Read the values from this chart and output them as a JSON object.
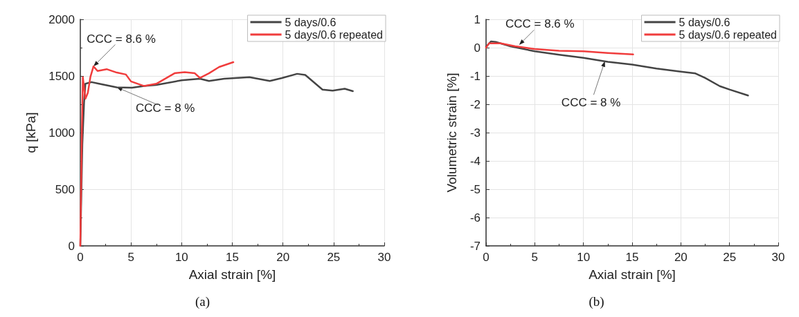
{
  "chart_data": [
    {
      "type": "line",
      "title": "(a)",
      "xlabel": "Axial strain [%]",
      "ylabel": "q [kPa]",
      "xlim": [
        0,
        30
      ],
      "xticks": [
        0,
        5,
        10,
        15,
        20,
        25,
        30
      ],
      "ylim": [
        0,
        2000
      ],
      "yticks": [
        0,
        500,
        1000,
        1500,
        2000
      ],
      "grid": true,
      "legend": "top right",
      "marker": "none",
      "line_style": "solid",
      "series": [
        {
          "name": "5 days/0.6",
          "color": "#444444",
          "x": [
            0,
            0.2,
            0.37,
            0.5,
            1.1,
            1.86,
            3.6,
            5.1,
            6.3,
            7.5,
            10,
            11.8,
            12.7,
            14.2,
            16.7,
            18.7,
            19.9,
            21.4,
            22.2,
            23.9,
            24.9,
            26.1,
            26.9
          ],
          "values": [
            0,
            900,
            1268,
            1431,
            1446,
            1431,
            1400,
            1397,
            1411,
            1421,
            1462,
            1476,
            1456,
            1476,
            1489,
            1456,
            1482,
            1519,
            1509,
            1380,
            1370,
            1387,
            1366
          ]
        },
        {
          "name": "5 days/0.6 repeated",
          "color": "#f03c3c",
          "x": [
            0,
            0.15,
            0.25,
            0.5,
            0.74,
            1.0,
            1.3,
            1.7,
            2.6,
            3.6,
            4.5,
            5.0,
            6.3,
            7.5,
            9.3,
            10.3,
            11.3,
            11.8,
            12.7,
            13.7,
            15.1
          ],
          "values": [
            0,
            1000,
            1489,
            1299,
            1350,
            1493,
            1585,
            1544,
            1560,
            1530,
            1513,
            1452,
            1411,
            1431,
            1524,
            1534,
            1524,
            1483,
            1524,
            1579,
            1622
          ]
        }
      ],
      "annotations": [
        {
          "text": "CCC = 8.6 %",
          "x": 1.3,
          "y": 1585
        },
        {
          "text": "CCC = 8 %",
          "x": 3.6,
          "y": 1400
        }
      ]
    },
    {
      "type": "line",
      "title": "(b)",
      "xlabel": "Axial strain [%]",
      "ylabel": "Volumetric strain [%]",
      "xlim": [
        0,
        30
      ],
      "xticks": [
        0,
        5,
        10,
        15,
        20,
        25,
        30
      ],
      "ylim": [
        -7,
        1
      ],
      "yticks": [
        -7,
        -6,
        -5,
        -4,
        -3,
        -2,
        -1,
        0,
        1
      ],
      "grid": true,
      "legend": "top right",
      "marker": "none",
      "line_style": "solid",
      "series": [
        {
          "name": "5 days/0.6",
          "color": "#444444",
          "x": [
            0,
            0.5,
            1.0,
            2.5,
            5,
            7.5,
            10,
            12.5,
            15,
            17.5,
            20,
            21.5,
            22.5,
            24,
            25,
            26.9
          ],
          "values": [
            0.03,
            0.22,
            0.2,
            0.05,
            -0.13,
            -0.25,
            -0.36,
            -0.5,
            -0.6,
            -0.74,
            -0.85,
            -0.91,
            -1.07,
            -1.36,
            -1.48,
            -1.69
          ]
        },
        {
          "name": "5 days/0.6 repeated",
          "color": "#f03c3c",
          "x": [
            0,
            0.3,
            1.5,
            3,
            5,
            7.5,
            10,
            12.5,
            15.1
          ],
          "values": [
            0,
            0.15,
            0.15,
            0.05,
            -0.05,
            -0.11,
            -0.13,
            -0.19,
            -0.24
          ]
        }
      ],
      "annotations": [
        {
          "text": "CCC = 8.6 %",
          "x": 3.4,
          "y": 0.1
        },
        {
          "text": "CCC = 8 %",
          "x": 12.2,
          "y": -0.48
        }
      ]
    }
  ]
}
